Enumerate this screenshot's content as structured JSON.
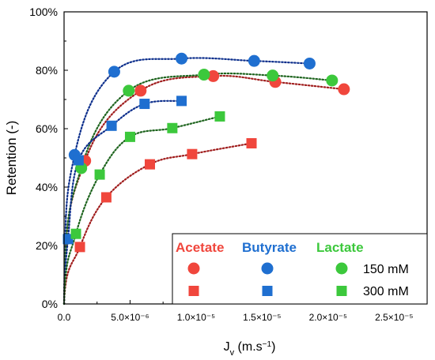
{
  "chart_data": {
    "type": "scatter",
    "xlabel": "J",
    "xlabel_sub": "v",
    "xlabel_unit": " (m.s",
    "xlabel_exp": "−1",
    "xlabel_close": ")",
    "ylabel": "Retention (-)",
    "xlim": [
      0,
      2.75e-05
    ],
    "ylim": [
      0,
      1.0
    ],
    "x_ticks": [
      0,
      5e-06,
      1e-05,
      1.5e-05,
      2e-05,
      2.5e-05
    ],
    "x_tick_labels": [
      "0.0",
      "5.0×10⁻⁶",
      "1.0×10⁻⁵",
      "1.5×10⁻⁵",
      "2.0×10⁻⁵",
      "2.5×10⁻⁵"
    ],
    "y_ticks": [
      0,
      0.2,
      0.4,
      0.6,
      0.8,
      1.0
    ],
    "y_tick_labels": [
      "0%",
      "20%",
      "40%",
      "60%",
      "80%",
      "100%"
    ],
    "colors": {
      "acetate": "#f0463c",
      "butyrate": "#1f6fd0",
      "lactate": "#3cc83c",
      "fit_acetate": "#a01e1e",
      "fit_butyrate": "#0d2f8c",
      "fit_lactate": "#1e641e"
    },
    "legend": {
      "placement": "bottom-right",
      "headers": [
        "Acetate",
        "Butyrate",
        "Lactate"
      ],
      "rows": [
        {
          "marker": "circle",
          "label": "150 mM"
        },
        {
          "marker": "square",
          "label": "300 mM"
        }
      ]
    },
    "series": [
      {
        "compound": "acetate",
        "concentration": "150 mM",
        "marker": "circle",
        "x": [
          1.6e-06,
          5.8e-06,
          1.13e-05,
          1.6e-05,
          2.12e-05
        ],
        "y": [
          0.49,
          0.73,
          0.78,
          0.76,
          0.735
        ]
      },
      {
        "compound": "butyrate",
        "concentration": "150 mM",
        "marker": "circle",
        "x": [
          8e-07,
          3.8e-06,
          8.9e-06,
          1.44e-05,
          1.86e-05
        ],
        "y": [
          0.51,
          0.795,
          0.84,
          0.832,
          0.823
        ]
      },
      {
        "compound": "lactate",
        "concentration": "150 mM",
        "marker": "circle",
        "x": [
          1.3e-06,
          4.9e-06,
          1.06e-05,
          1.58e-05,
          2.03e-05
        ],
        "y": [
          0.465,
          0.73,
          0.785,
          0.782,
          0.765
        ]
      },
      {
        "compound": "acetate",
        "concentration": "300 mM",
        "marker": "square",
        "x": [
          1.2e-06,
          3.2e-06,
          6.5e-06,
          9.7e-06,
          1.42e-05
        ],
        "y": [
          0.195,
          0.365,
          0.478,
          0.513,
          0.55
        ]
      },
      {
        "compound": "butyrate",
        "concentration": "300 mM",
        "marker": "square",
        "x": [
          3e-07,
          1.1e-06,
          3.6e-06,
          6.1e-06,
          8.9e-06
        ],
        "y": [
          0.222,
          0.492,
          0.61,
          0.685,
          0.695
        ]
      },
      {
        "compound": "lactate",
        "concentration": "300 mM",
        "marker": "square",
        "x": [
          9e-07,
          2.7e-06,
          5e-06,
          8.2e-06,
          1.18e-05
        ],
        "y": [
          0.24,
          0.443,
          0.572,
          0.602,
          0.642
        ]
      }
    ]
  }
}
